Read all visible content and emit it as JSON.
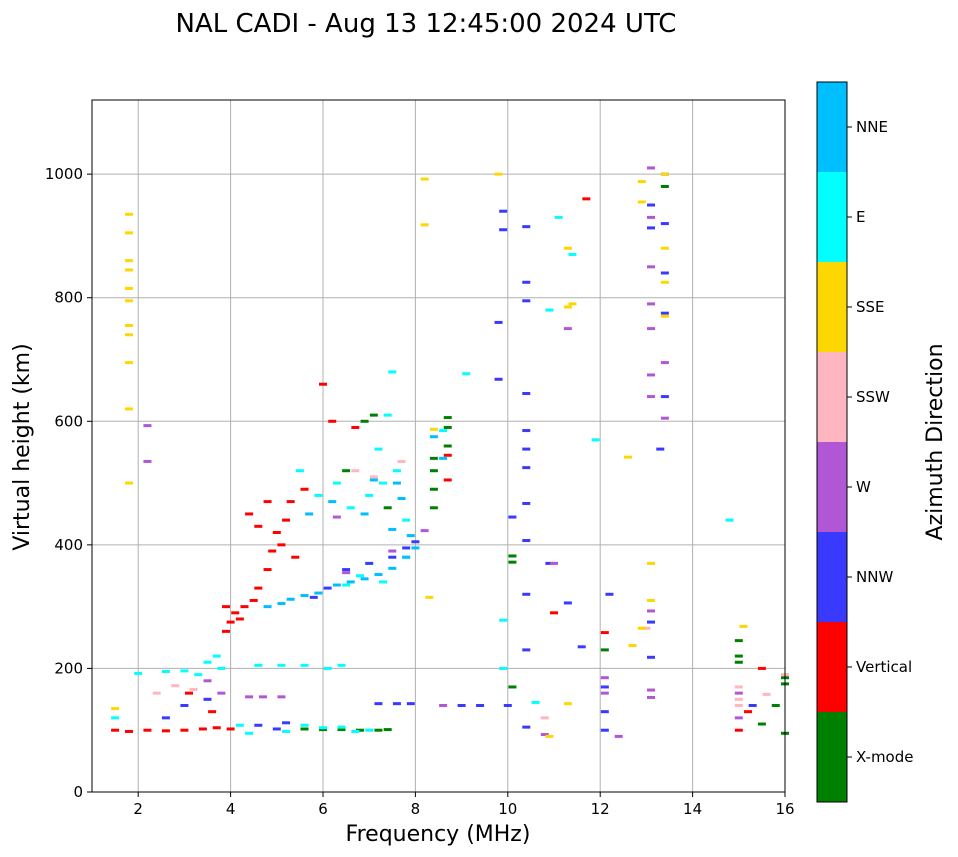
{
  "chart_data": {
    "type": "scatter",
    "title": "NAL CADI - Aug 13 12:45:00 2024 UTC",
    "xlabel": "Frequency (MHz)",
    "ylabel": "Virtual height (km)",
    "xlim": [
      1,
      16
    ],
    "ylim": [
      0,
      1120
    ],
    "xticks": [
      2,
      4,
      6,
      8,
      10,
      12,
      14,
      16
    ],
    "yticks": [
      0,
      200,
      400,
      600,
      800,
      1000
    ],
    "grid": true,
    "colorbar": {
      "label": "Azimuth Direction",
      "categories": [
        {
          "name": "X-mode",
          "color": "#008000"
        },
        {
          "name": "Vertical",
          "color": "#ff0000"
        },
        {
          "name": "NNW",
          "color": "#3a3aff"
        },
        {
          "name": "W",
          "color": "#b157d6"
        },
        {
          "name": "SSW",
          "color": "#ffb6c1"
        },
        {
          "name": "SSE",
          "color": "#ffd700"
        },
        {
          "name": "E",
          "color": "#00ffff"
        },
        {
          "name": "NNE",
          "color": "#00bfff"
        }
      ]
    },
    "series": [
      {
        "name": "X-mode",
        "points": [
          [
            5.6,
            102
          ],
          [
            6.0,
            101
          ],
          [
            6.4,
            101
          ],
          [
            6.8,
            100
          ],
          [
            7.2,
            100
          ],
          [
            7.4,
            101
          ],
          [
            8.4,
            460
          ],
          [
            8.4,
            490
          ],
          [
            8.4,
            520
          ],
          [
            8.4,
            540
          ],
          [
            8.7,
            560
          ],
          [
            8.7,
            590
          ],
          [
            8.7,
            606
          ],
          [
            10.1,
            382
          ],
          [
            10.1,
            170
          ],
          [
            12.1,
            230
          ],
          [
            15.0,
            245
          ],
          [
            15.0,
            210
          ],
          [
            15.0,
            220
          ],
          [
            15.5,
            110
          ],
          [
            15.8,
            140
          ],
          [
            16.0,
            185
          ],
          [
            16.0,
            175
          ],
          [
            16.0,
            95
          ],
          [
            13.4,
            980
          ],
          [
            6.9,
            600
          ],
          [
            7.1,
            610
          ],
          [
            6.5,
            520
          ],
          [
            7.4,
            460
          ],
          [
            10.1,
            372
          ]
        ]
      },
      {
        "name": "Vertical",
        "points": [
          [
            1.5,
            100
          ],
          [
            1.8,
            98
          ],
          [
            2.2,
            100
          ],
          [
            2.6,
            99
          ],
          [
            3.0,
            100
          ],
          [
            3.4,
            102
          ],
          [
            3.7,
            104
          ],
          [
            4.0,
            102
          ],
          [
            3.9,
            260
          ],
          [
            4.0,
            275
          ],
          [
            4.1,
            290
          ],
          [
            4.3,
            300
          ],
          [
            4.5,
            310
          ],
          [
            4.6,
            330
          ],
          [
            4.8,
            360
          ],
          [
            4.9,
            390
          ],
          [
            5.0,
            420
          ],
          [
            5.2,
            440
          ],
          [
            5.3,
            470
          ],
          [
            5.6,
            490
          ],
          [
            4.4,
            450
          ],
          [
            4.6,
            430
          ],
          [
            4.8,
            470
          ],
          [
            5.1,
            400
          ],
          [
            5.4,
            380
          ],
          [
            6.0,
            660
          ],
          [
            6.2,
            600
          ],
          [
            15.0,
            100
          ],
          [
            15.2,
            130
          ],
          [
            15.5,
            200
          ],
          [
            12.1,
            258
          ],
          [
            11.7,
            960
          ],
          [
            11.0,
            290
          ],
          [
            8.7,
            545
          ],
          [
            8.7,
            505
          ],
          [
            6.7,
            590
          ],
          [
            3.9,
            300
          ],
          [
            4.2,
            280
          ],
          [
            3.6,
            130
          ],
          [
            3.1,
            160
          ]
        ]
      },
      {
        "name": "NNW",
        "points": [
          [
            2.6,
            120
          ],
          [
            3.0,
            140
          ],
          [
            3.5,
            150
          ],
          [
            4.6,
            108
          ],
          [
            5.0,
            102
          ],
          [
            5.2,
            112
          ],
          [
            5.8,
            315
          ],
          [
            6.1,
            330
          ],
          [
            6.5,
            360
          ],
          [
            7.0,
            370
          ],
          [
            7.5,
            380
          ],
          [
            7.8,
            395
          ],
          [
            8.0,
            405
          ],
          [
            10.0,
            140
          ],
          [
            9.4,
            140
          ],
          [
            9.0,
            140
          ],
          [
            7.6,
            143
          ],
          [
            7.2,
            143
          ],
          [
            7.9,
            143
          ],
          [
            9.9,
            940
          ],
          [
            9.9,
            910
          ],
          [
            10.4,
            915
          ],
          [
            10.4,
            825
          ],
          [
            10.4,
            795
          ],
          [
            9.8,
            760
          ],
          [
            9.8,
            668
          ],
          [
            10.4,
            645
          ],
          [
            10.4,
            585
          ],
          [
            10.4,
            555
          ],
          [
            10.4,
            525
          ],
          [
            10.1,
            445
          ],
          [
            10.4,
            467
          ],
          [
            10.4,
            407
          ],
          [
            10.9,
            370
          ],
          [
            10.4,
            320
          ],
          [
            10.4,
            230
          ],
          [
            10.4,
            105
          ],
          [
            12.1,
            100
          ],
          [
            12.1,
            130
          ],
          [
            12.1,
            170
          ],
          [
            12.2,
            320
          ],
          [
            13.4,
            1000
          ],
          [
            13.4,
            920
          ],
          [
            13.4,
            840
          ],
          [
            13.4,
            775
          ],
          [
            13.4,
            640
          ],
          [
            13.3,
            555
          ],
          [
            11.3,
            306
          ],
          [
            11.6,
            235
          ],
          [
            13.1,
            218
          ],
          [
            13.1,
            275
          ],
          [
            13.1,
            950
          ],
          [
            13.1,
            913
          ],
          [
            15.3,
            140
          ]
        ]
      },
      {
        "name": "W",
        "points": [
          [
            2.2,
            593
          ],
          [
            2.2,
            535
          ],
          [
            3.5,
            180
          ],
          [
            3.8,
            160
          ],
          [
            4.4,
            154
          ],
          [
            4.7,
            154
          ],
          [
            5.1,
            154
          ],
          [
            6.3,
            445
          ],
          [
            6.5,
            355
          ],
          [
            7.5,
            390
          ],
          [
            8.2,
            423
          ],
          [
            8.6,
            140
          ],
          [
            10.8,
            93
          ],
          [
            11.0,
            370
          ],
          [
            11.3,
            750
          ],
          [
            12.4,
            90
          ],
          [
            12.1,
            185
          ],
          [
            12.1,
            160
          ],
          [
            13.1,
            1010
          ],
          [
            13.1,
            930
          ],
          [
            13.1,
            850
          ],
          [
            13.1,
            790
          ],
          [
            13.1,
            750
          ],
          [
            13.1,
            675
          ],
          [
            13.1,
            640
          ],
          [
            13.1,
            293
          ],
          [
            13.1,
            165
          ],
          [
            13.1,
            153
          ],
          [
            13.4,
            695
          ],
          [
            13.4,
            605
          ],
          [
            15.0,
            160
          ],
          [
            15.0,
            120
          ]
        ]
      },
      {
        "name": "SSW",
        "points": [
          [
            2.4,
            160
          ],
          [
            2.8,
            172
          ],
          [
            3.2,
            166
          ],
          [
            6.7,
            520
          ],
          [
            7.1,
            510
          ],
          [
            7.7,
            535
          ],
          [
            10.8,
            120
          ],
          [
            13.0,
            265
          ],
          [
            15.0,
            170
          ],
          [
            15.0,
            150
          ],
          [
            15.0,
            140
          ],
          [
            16.0,
            190
          ],
          [
            15.6,
            158
          ]
        ]
      },
      {
        "name": "SSE",
        "points": [
          [
            1.5,
            135
          ],
          [
            1.8,
            935
          ],
          [
            1.8,
            905
          ],
          [
            1.8,
            860
          ],
          [
            1.8,
            845
          ],
          [
            1.8,
            815
          ],
          [
            1.8,
            795
          ],
          [
            1.8,
            755
          ],
          [
            1.8,
            740
          ],
          [
            1.8,
            695
          ],
          [
            1.8,
            620
          ],
          [
            1.8,
            500
          ],
          [
            8.2,
            992
          ],
          [
            8.2,
            918
          ],
          [
            8.3,
            315
          ],
          [
            8.4,
            587
          ],
          [
            9.8,
            1000
          ],
          [
            10.9,
            90
          ],
          [
            11.3,
            880
          ],
          [
            11.4,
            790
          ],
          [
            11.3,
            143
          ],
          [
            12.6,
            542
          ],
          [
            12.7,
            237
          ],
          [
            12.9,
            265
          ],
          [
            12.9,
            988
          ],
          [
            12.9,
            955
          ],
          [
            13.1,
            370
          ],
          [
            13.1,
            310
          ],
          [
            13.4,
            880
          ],
          [
            13.4,
            825
          ],
          [
            13.4,
            770
          ],
          [
            13.4,
            1000
          ],
          [
            15.1,
            268
          ],
          [
            11.3,
            785
          ]
        ]
      },
      {
        "name": "E",
        "points": [
          [
            1.5,
            120
          ],
          [
            2.0,
            192
          ],
          [
            2.6,
            195
          ],
          [
            3.0,
            196
          ],
          [
            3.3,
            190
          ],
          [
            3.5,
            210
          ],
          [
            3.7,
            220
          ],
          [
            3.8,
            200
          ],
          [
            4.2,
            108
          ],
          [
            4.4,
            95
          ],
          [
            5.2,
            98
          ],
          [
            5.6,
            108
          ],
          [
            6.0,
            104
          ],
          [
            6.4,
            105
          ],
          [
            6.7,
            98
          ],
          [
            7.0,
            100
          ],
          [
            6.1,
            200
          ],
          [
            5.6,
            205
          ],
          [
            5.1,
            205
          ],
          [
            4.6,
            205
          ],
          [
            6.4,
            205
          ],
          [
            5.5,
            520
          ],
          [
            5.9,
            480
          ],
          [
            6.3,
            500
          ],
          [
            6.6,
            460
          ],
          [
            7.0,
            480
          ],
          [
            7.3,
            500
          ],
          [
            7.6,
            520
          ],
          [
            7.8,
            440
          ],
          [
            7.2,
            555
          ],
          [
            7.4,
            610
          ],
          [
            7.5,
            680
          ],
          [
            6.5,
            335
          ],
          [
            6.8,
            350
          ],
          [
            7.3,
            340
          ],
          [
            7.8,
            380
          ],
          [
            8.6,
            585
          ],
          [
            9.1,
            677
          ],
          [
            9.9,
            278
          ],
          [
            9.9,
            200
          ],
          [
            10.6,
            145
          ],
          [
            11.1,
            930
          ],
          [
            11.4,
            870
          ],
          [
            10.9,
            780
          ],
          [
            14.8,
            440
          ],
          [
            11.9,
            570
          ]
        ]
      },
      {
        "name": "NNE",
        "points": [
          [
            4.8,
            300
          ],
          [
            5.1,
            305
          ],
          [
            5.3,
            312
          ],
          [
            5.6,
            318
          ],
          [
            5.9,
            322
          ],
          [
            6.3,
            335
          ],
          [
            6.6,
            340
          ],
          [
            6.9,
            345
          ],
          [
            7.2,
            352
          ],
          [
            7.5,
            362
          ],
          [
            7.8,
            380
          ],
          [
            8.0,
            395
          ],
          [
            7.5,
            425
          ],
          [
            7.9,
            415
          ],
          [
            7.6,
            500
          ],
          [
            6.9,
            450
          ],
          [
            6.2,
            470
          ],
          [
            5.7,
            450
          ],
          [
            7.1,
            505
          ],
          [
            7.7,
            475
          ],
          [
            8.6,
            540
          ],
          [
            8.4,
            575
          ]
        ]
      }
    ]
  }
}
